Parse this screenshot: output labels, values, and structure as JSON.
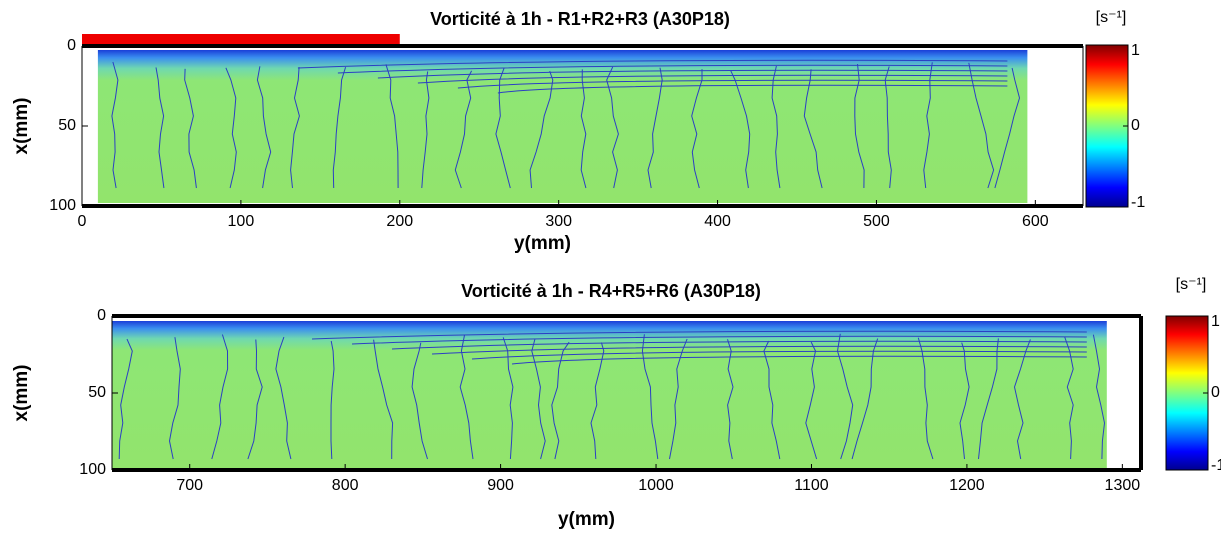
{
  "chart_data": [
    {
      "type": "heatmap",
      "title": "Vorticité à 1h - R1+R2+R3 (A30P18)",
      "xlabel": "y(mm)",
      "ylabel": "x(mm)",
      "xlim": [
        0,
        630
      ],
      "xticks": [
        0,
        100,
        200,
        300,
        400,
        500,
        600
      ],
      "ylim": [
        0,
        100
      ],
      "yticks": [
        0,
        50,
        100
      ],
      "y_reversed": true,
      "field_xrange": [
        10,
        595
      ],
      "highlight": {
        "range": [
          0,
          200
        ],
        "color": "#ee0000"
      },
      "colorbar": {
        "label": "[s⁻¹]",
        "lim": [
          -1,
          1
        ],
        "ticks": [
          1,
          0,
          -1
        ]
      }
    },
    {
      "type": "heatmap",
      "title": "Vorticité à 1h - R4+R5+R6 (A30P18)",
      "xlabel": "y(mm)",
      "ylabel": "x(mm)",
      "xlim": [
        650,
        1312
      ],
      "xticks": [
        700,
        800,
        900,
        1000,
        1100,
        1200,
        1300
      ],
      "ylim": [
        0,
        100
      ],
      "yticks": [
        0,
        50,
        100
      ],
      "y_reversed": true,
      "field_xrange": [
        650,
        1290
      ],
      "colorbar": {
        "label": "[s⁻¹]",
        "lim": [
          -1,
          1
        ],
        "ticks": [
          1,
          0,
          -1
        ]
      }
    }
  ]
}
